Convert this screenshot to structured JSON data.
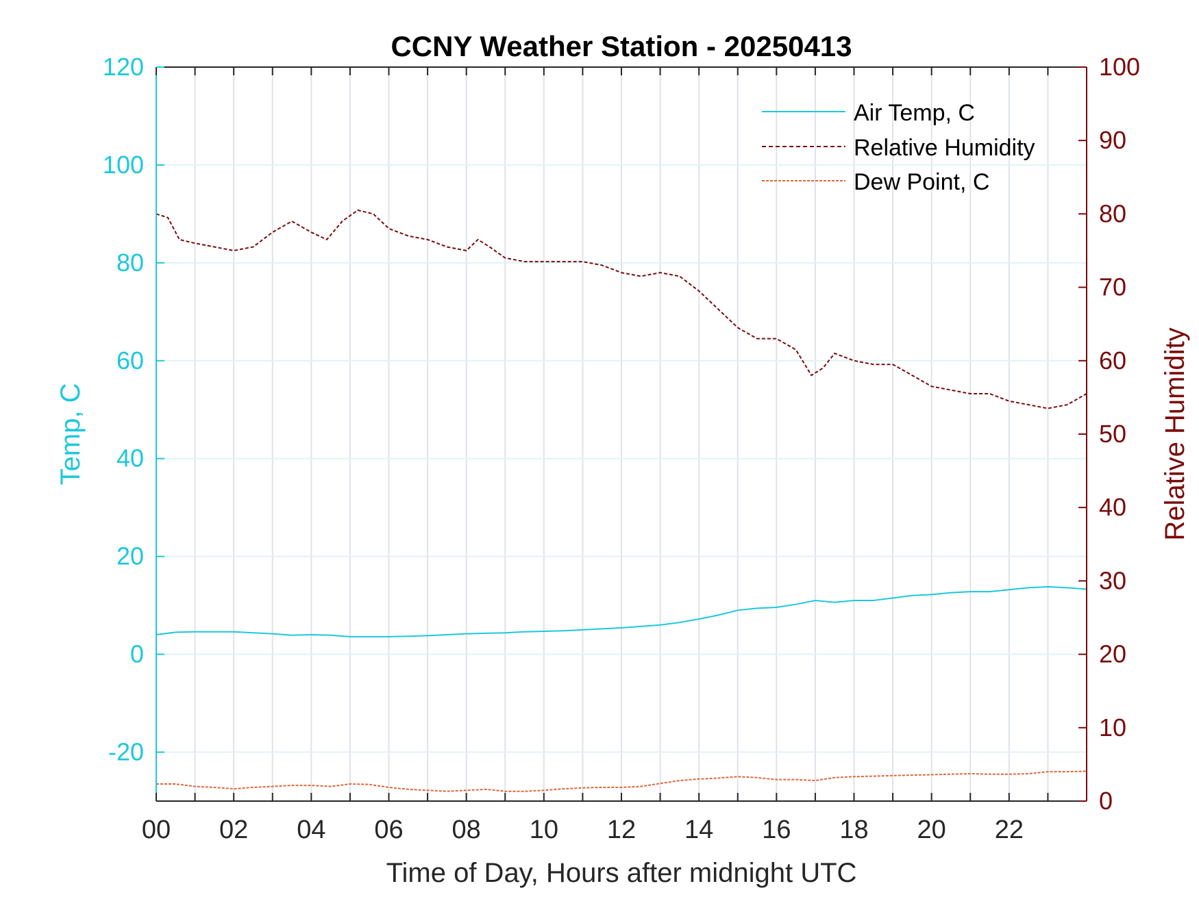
{
  "chart_data": {
    "type": "line",
    "title": "CCNY Weather Station - 20250413",
    "xlabel": "Time of Day, Hours after midnight UTC",
    "ylabel_left": "Temp, C",
    "ylabel_right": "Relative Humidity",
    "xlim": [
      0,
      24
    ],
    "ylim_left": [
      -30,
      120
    ],
    "ylim_right": [
      0,
      100
    ],
    "x_ticks": [
      0,
      2,
      4,
      6,
      8,
      10,
      12,
      14,
      16,
      18,
      20,
      22
    ],
    "x_tick_labels": [
      "00",
      "02",
      "04",
      "06",
      "08",
      "10",
      "12",
      "14",
      "16",
      "18",
      "20",
      "22"
    ],
    "y_left_ticks": [
      -20,
      0,
      20,
      40,
      60,
      80,
      100,
      120
    ],
    "y_left_tick_labels": [
      "-20",
      "0",
      "20",
      "40",
      "60",
      "80",
      "100",
      "120"
    ],
    "y_right_ticks": [
      0,
      10,
      20,
      30,
      40,
      50,
      60,
      70,
      80,
      90,
      100
    ],
    "y_right_tick_labels": [
      "0",
      "10",
      "20",
      "30",
      "40",
      "50",
      "60",
      "70",
      "80",
      "90",
      "100"
    ],
    "grid": true,
    "legend_position": "top-right",
    "colors": {
      "left_axis": "#1cc8dc",
      "right_axis": "#7a0a0a",
      "air_temp": "#1cc8dc",
      "humidity": "#7a0a0a",
      "dew_point": "#e0643a"
    },
    "series": [
      {
        "name": "Air Temp, C",
        "axis": "left",
        "style": "solid",
        "x": [
          0,
          0.5,
          1,
          1.5,
          2,
          2.5,
          3,
          3.5,
          4,
          4.5,
          5,
          5.5,
          6,
          6.5,
          7,
          7.5,
          8,
          8.5,
          9,
          9.5,
          10,
          10.5,
          11,
          11.5,
          12,
          12.5,
          13,
          13.5,
          14,
          14.5,
          15,
          15.5,
          16,
          16.5,
          17,
          17.5,
          18,
          18.5,
          19,
          19.5,
          20,
          20.5,
          21,
          21.5,
          22,
          22.5,
          23,
          23.5,
          24
        ],
        "y": [
          4.0,
          4.5,
          4.6,
          4.6,
          4.6,
          4.4,
          4.2,
          3.9,
          4.0,
          3.9,
          3.6,
          3.6,
          3.6,
          3.7,
          3.8,
          4.0,
          4.2,
          4.3,
          4.4,
          4.6,
          4.7,
          4.8,
          5.0,
          5.2,
          5.4,
          5.7,
          6.0,
          6.5,
          7.2,
          8.0,
          9.0,
          9.4,
          9.6,
          10.2,
          11.0,
          10.6,
          11.0,
          11.0,
          11.5,
          12.0,
          12.2,
          12.6,
          12.8,
          12.8,
          13.2,
          13.6,
          13.8,
          13.6,
          13.3
        ]
      },
      {
        "name": "Relative Humidity",
        "axis": "right",
        "style": "dashed",
        "x": [
          0,
          0.3,
          0.6,
          1,
          1.5,
          2,
          2.5,
          3,
          3.5,
          4,
          4.4,
          4.8,
          5.2,
          5.6,
          6,
          6.5,
          7,
          7.5,
          8,
          8.3,
          8.6,
          9,
          9.5,
          10,
          10.5,
          11,
          11.5,
          12,
          12.5,
          13,
          13.5,
          14,
          14.5,
          15,
          15.5,
          16,
          16.5,
          16.9,
          17.2,
          17.5,
          18,
          18.5,
          19,
          19.5,
          20,
          20.5,
          21,
          21.5,
          22,
          22.5,
          23,
          23.5,
          24
        ],
        "y": [
          80,
          79.5,
          76.5,
          76,
          75.5,
          75,
          75.5,
          77.5,
          79,
          77.5,
          76.5,
          79,
          80.5,
          80,
          78,
          77,
          76.5,
          75.5,
          75,
          76.5,
          75.5,
          74,
          73.5,
          73.5,
          73.5,
          73.5,
          73,
          72,
          71.5,
          72,
          71.5,
          69.5,
          67,
          64.5,
          63,
          63,
          61.5,
          58,
          59,
          61,
          60,
          59.5,
          59.5,
          58,
          56.5,
          56,
          55.5,
          55.5,
          54.5,
          54,
          53.5,
          54,
          55.5
        ]
      },
      {
        "name": "Dew Point, C",
        "axis": "left",
        "style": "dashed",
        "x": [
          0,
          0.5,
          1,
          1.5,
          2,
          2.5,
          3,
          3.5,
          4,
          4.5,
          5,
          5.5,
          6,
          6.5,
          7,
          7.5,
          8,
          8.5,
          9,
          9.5,
          10,
          10.5,
          11,
          11.5,
          12,
          12.5,
          13,
          13.5,
          14,
          14.5,
          15,
          15.5,
          16,
          16.5,
          17,
          17.5,
          18,
          18.5,
          19,
          19.5,
          20,
          20.5,
          21,
          21.5,
          22,
          22.5,
          23,
          23.5,
          24
        ],
        "y": [
          -26.5,
          -26.5,
          -27.0,
          -27.2,
          -27.5,
          -27.2,
          -27.0,
          -26.8,
          -26.8,
          -27.0,
          -26.5,
          -26.6,
          -27.2,
          -27.6,
          -27.8,
          -28.0,
          -27.8,
          -27.6,
          -28.0,
          -28.0,
          -27.8,
          -27.5,
          -27.3,
          -27.2,
          -27.2,
          -27.0,
          -26.4,
          -25.8,
          -25.5,
          -25.3,
          -25.0,
          -25.2,
          -25.6,
          -25.6,
          -25.8,
          -25.2,
          -25.0,
          -24.9,
          -24.8,
          -24.7,
          -24.6,
          -24.5,
          -24.4,
          -24.5,
          -24.5,
          -24.4,
          -24.0,
          -24.0,
          -23.9
        ]
      }
    ]
  }
}
